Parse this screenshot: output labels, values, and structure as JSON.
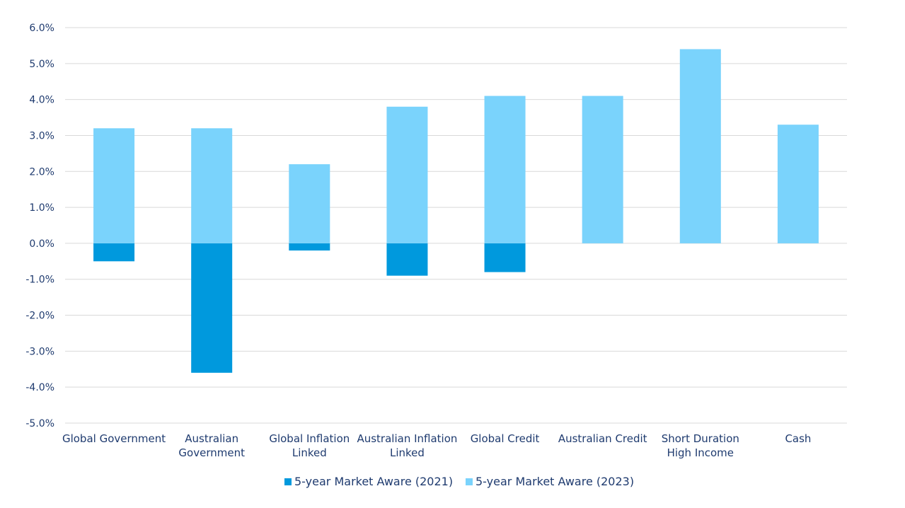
{
  "chart_data": {
    "type": "bar",
    "title": "",
    "xlabel": "",
    "ylabel": "",
    "ylim": [
      -5.0,
      6.0
    ],
    "ytick_step": 1.0,
    "ytick_format": "percent_1dp",
    "grid": true,
    "legend_position": "bottom",
    "categories": [
      [
        "Global Government"
      ],
      [
        "Australian",
        "Government"
      ],
      [
        "Global Inflation",
        "Linked"
      ],
      [
        "Australian Inflation",
        "Linked"
      ],
      [
        "Global Credit"
      ],
      [
        "Australian Credit"
      ],
      [
        "Short Duration",
        "High Income"
      ],
      [
        "Cash"
      ]
    ],
    "series": [
      {
        "name": "5-year Market Aware (2021)",
        "color": "#0099dd",
        "values": [
          -0.5,
          -3.6,
          -0.2,
          -0.9,
          -0.8,
          null,
          null,
          null
        ]
      },
      {
        "name": "5-year Market Aware (2023)",
        "color": "#7ad3fc",
        "values": [
          3.2,
          3.2,
          2.2,
          3.8,
          4.1,
          4.1,
          5.4,
          3.3
        ]
      }
    ]
  }
}
